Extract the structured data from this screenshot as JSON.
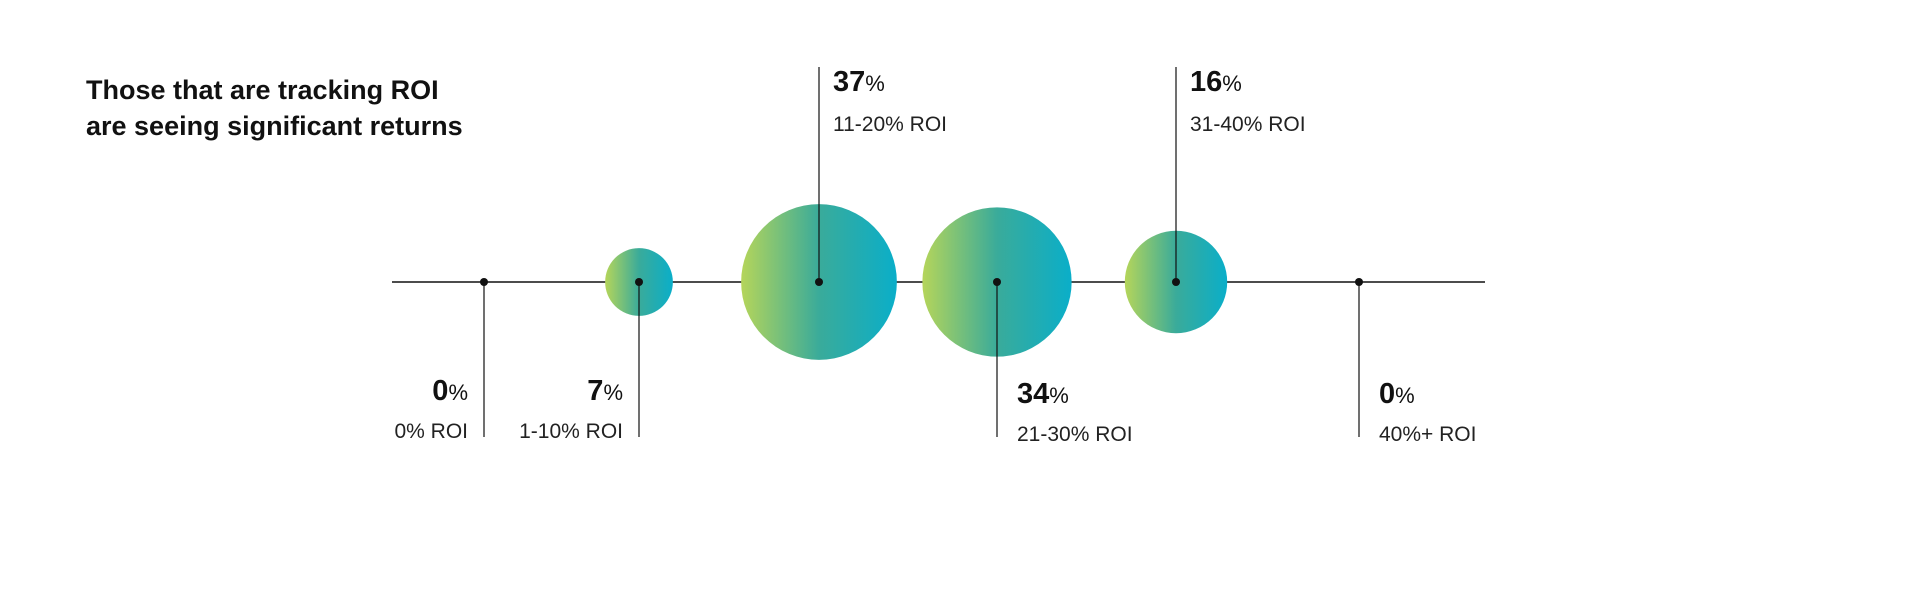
{
  "chart_data": {
    "type": "bubble",
    "title_lines": [
      "Those that are tracking ROI",
      "are seeing significant returns"
    ],
    "categories": [
      "0% ROI",
      "1-10% ROI",
      "11-20% ROI",
      "21-30% ROI",
      "31-40% ROI",
      "40%+ ROI"
    ],
    "values": [
      0,
      7,
      37,
      34,
      16,
      0
    ],
    "value_suffix": "%",
    "label_side": [
      "below",
      "below",
      "above",
      "below",
      "above",
      "below"
    ],
    "gradient": {
      "start": "#b5d55a",
      "end": "#0aaec9"
    },
    "axis_color": "#111111"
  }
}
